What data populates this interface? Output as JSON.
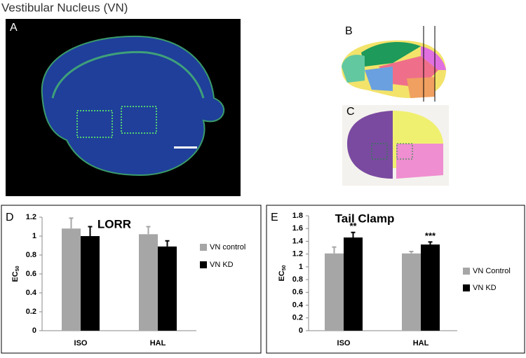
{
  "figure_title": "Vestibular Nucleus (VN)",
  "panel_labels": [
    "A",
    "B",
    "C"
  ],
  "chart_data": [
    {
      "type": "bar",
      "panel_label": "D",
      "title": "LORR",
      "y_label": {
        "text": "EC",
        "subscript": "50"
      },
      "categories": [
        "ISO",
        "HAL"
      ],
      "series": [
        {
          "name": "VN control",
          "color": "#a6a6a6",
          "values": [
            1.08,
            1.02
          ],
          "errors": [
            0.11,
            0.08
          ]
        },
        {
          "name": "VN KD",
          "color": "#000000",
          "values": [
            1.0,
            0.89
          ],
          "errors": [
            0.1,
            0.06
          ]
        }
      ],
      "ylim": [
        0,
        1.2
      ],
      "yticks": [
        0,
        0.2,
        0.4,
        0.6,
        0.8,
        1,
        1.2
      ],
      "grid": false,
      "legend": "right"
    },
    {
      "type": "bar",
      "panel_label": "E",
      "title": "Tail Clamp",
      "y_label": {
        "text": "EC",
        "subscript": "50"
      },
      "categories": [
        "ISO",
        "HAL"
      ],
      "series": [
        {
          "name": "VN Control",
          "color": "#a6a6a6",
          "values": [
            1.21,
            1.21
          ],
          "errors": [
            0.1,
            0.03
          ]
        },
        {
          "name": "VN KD",
          "color": "#000000",
          "values": [
            1.46,
            1.35
          ],
          "errors": [
            0.08,
            0.04
          ],
          "annotations": [
            "**",
            "***"
          ]
        }
      ],
      "ylim": [
        0,
        1.8
      ],
      "yticks": [
        0,
        0.2,
        0.4,
        0.6,
        0.8,
        1,
        1.2,
        1.4,
        1.6,
        1.8
      ],
      "grid": false,
      "legend": "right"
    }
  ]
}
